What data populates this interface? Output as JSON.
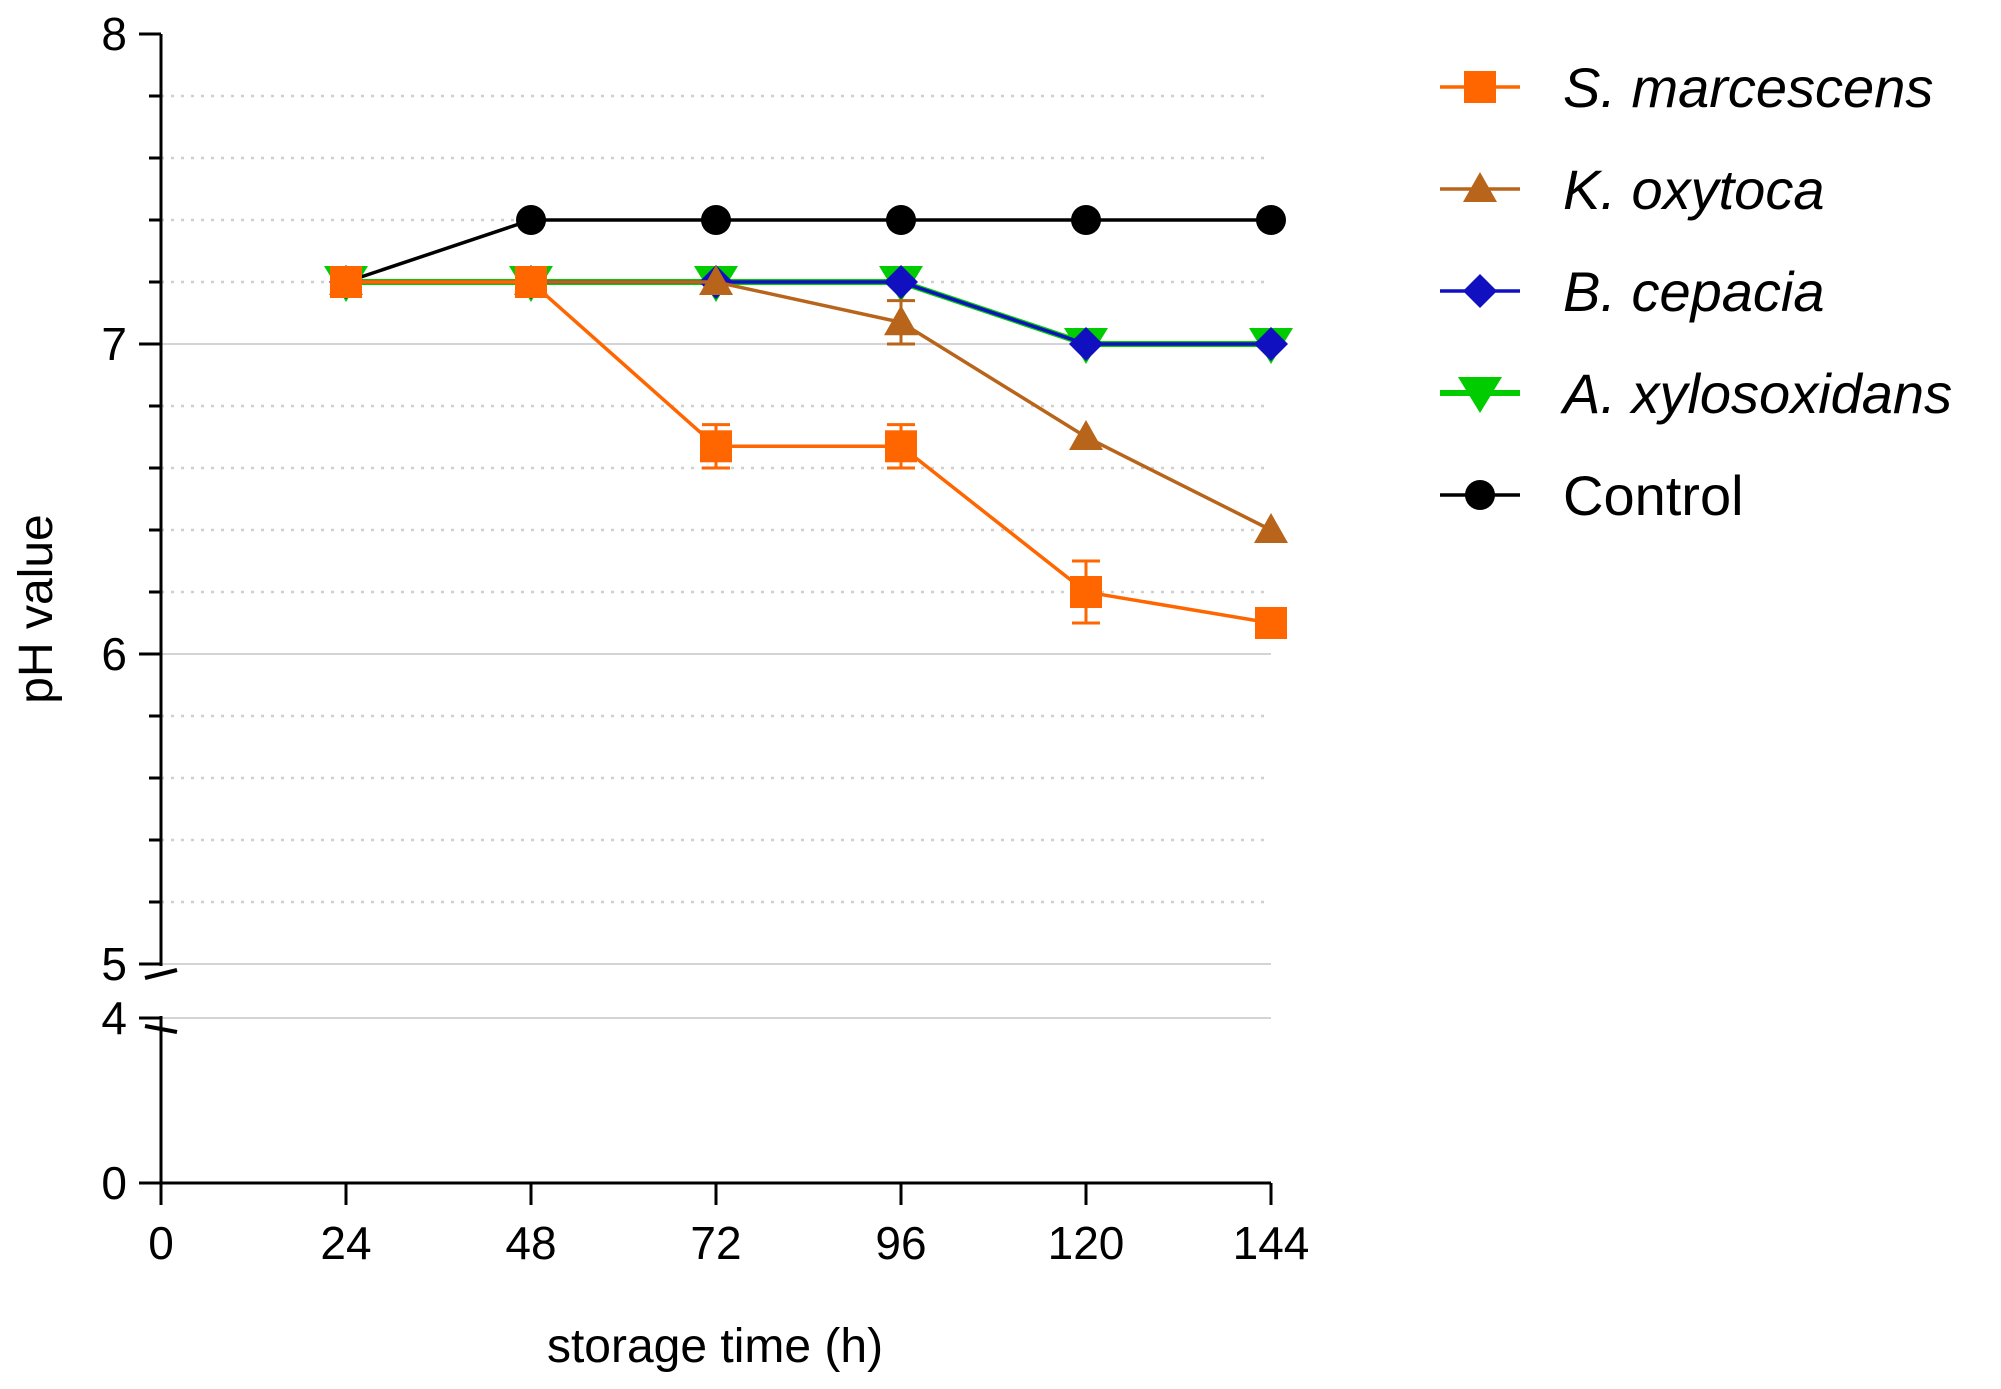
{
  "chart_data": {
    "type": "line",
    "title": "",
    "xlabel": "storage time (h)",
    "ylabel": "pH value",
    "x": [
      24,
      48,
      72,
      96,
      120,
      144
    ],
    "xlim": [
      0,
      144
    ],
    "xticks": [
      "0",
      "24",
      "48",
      "72",
      "96",
      "120",
      "144"
    ],
    "y_break": {
      "lower_range": [
        0,
        4
      ],
      "upper_range": [
        5,
        8
      ]
    },
    "yticks_labeled": [
      "0",
      "4",
      "5",
      "6",
      "7",
      "8"
    ],
    "grid": true,
    "legend_position": "top-right outside",
    "series": [
      {
        "name": "S. marcescens",
        "italic": true,
        "color": "#FF6600",
        "marker": "square",
        "values": [
          7.2,
          7.2,
          6.67,
          6.67,
          6.2,
          6.1
        ],
        "errors": [
          0,
          0,
          0.07,
          0.07,
          0.1,
          0
        ]
      },
      {
        "name": "K. oxytoca",
        "italic": true,
        "color": "#B8651B",
        "marker": "triangle-up",
        "values": [
          7.2,
          7.2,
          7.2,
          7.07,
          6.7,
          6.4
        ],
        "errors": [
          0,
          0,
          0,
          0.07,
          0,
          0
        ]
      },
      {
        "name": "B. cepacia",
        "italic": true,
        "color": "#1010C0",
        "marker": "diamond",
        "values": [
          7.2,
          7.2,
          7.2,
          7.2,
          7.0,
          7.0
        ],
        "errors": [
          0,
          0,
          0,
          0,
          0,
          0
        ]
      },
      {
        "name": "A. xylosoxidans",
        "italic": true,
        "color": "#00CC00",
        "marker": "triangle-down",
        "values": [
          7.2,
          7.2,
          7.2,
          7.2,
          7.0,
          7.0
        ],
        "errors": [
          0,
          0,
          0,
          0,
          0,
          0
        ]
      },
      {
        "name": "Control",
        "italic": false,
        "color": "#000000",
        "marker": "circle",
        "values": [
          7.2,
          7.4,
          7.4,
          7.4,
          7.4,
          7.4
        ],
        "errors": [
          0,
          0,
          0,
          0,
          0,
          0
        ]
      }
    ]
  }
}
